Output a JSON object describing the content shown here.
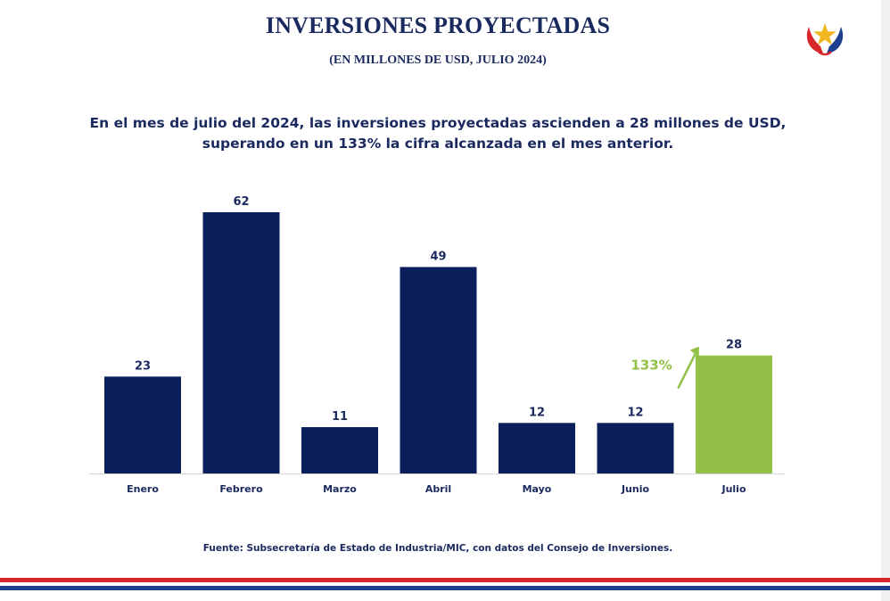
{
  "header": {
    "title": "INVERSIONES PROYECTADAS",
    "subtitle": "(EN MILLONES DE USD, JULIO 2024)"
  },
  "headline": {
    "line1": "En el mes de julio del 2024, las inversiones proyectadas ascienden a 28 millones de USD,",
    "line2": "superando en un 133% la cifra alcanzada en el mes anterior."
  },
  "colors": {
    "navy": "#0b1f5c",
    "highlight": "#93c047",
    "text": "#1b2a5e",
    "flag_red": "#d9262b",
    "flag_blue": "#1e3f8f"
  },
  "chart_data": {
    "type": "bar",
    "title": "INVERSIONES PROYECTADAS",
    "xlabel": "",
    "ylabel": "",
    "categories": [
      "Enero",
      "Febrero",
      "Marzo",
      "Abril",
      "Mayo",
      "Junio",
      "Julio"
    ],
    "values": [
      23,
      62,
      11,
      49,
      12,
      12,
      28
    ],
    "highlight_category": "Julio",
    "ylim": [
      0,
      62
    ],
    "grid": false,
    "legend": "none",
    "annotation": {
      "text": "133%",
      "icon": "arrow-up-right-icon",
      "between": [
        "Junio",
        "Julio"
      ]
    }
  },
  "footer": {
    "source": "Fuente: Subsecretaría de Estado de Industria/MIC, con datos del Consejo de Inversiones."
  },
  "logo": {
    "icon": "paraguay-seal-star-icon"
  }
}
